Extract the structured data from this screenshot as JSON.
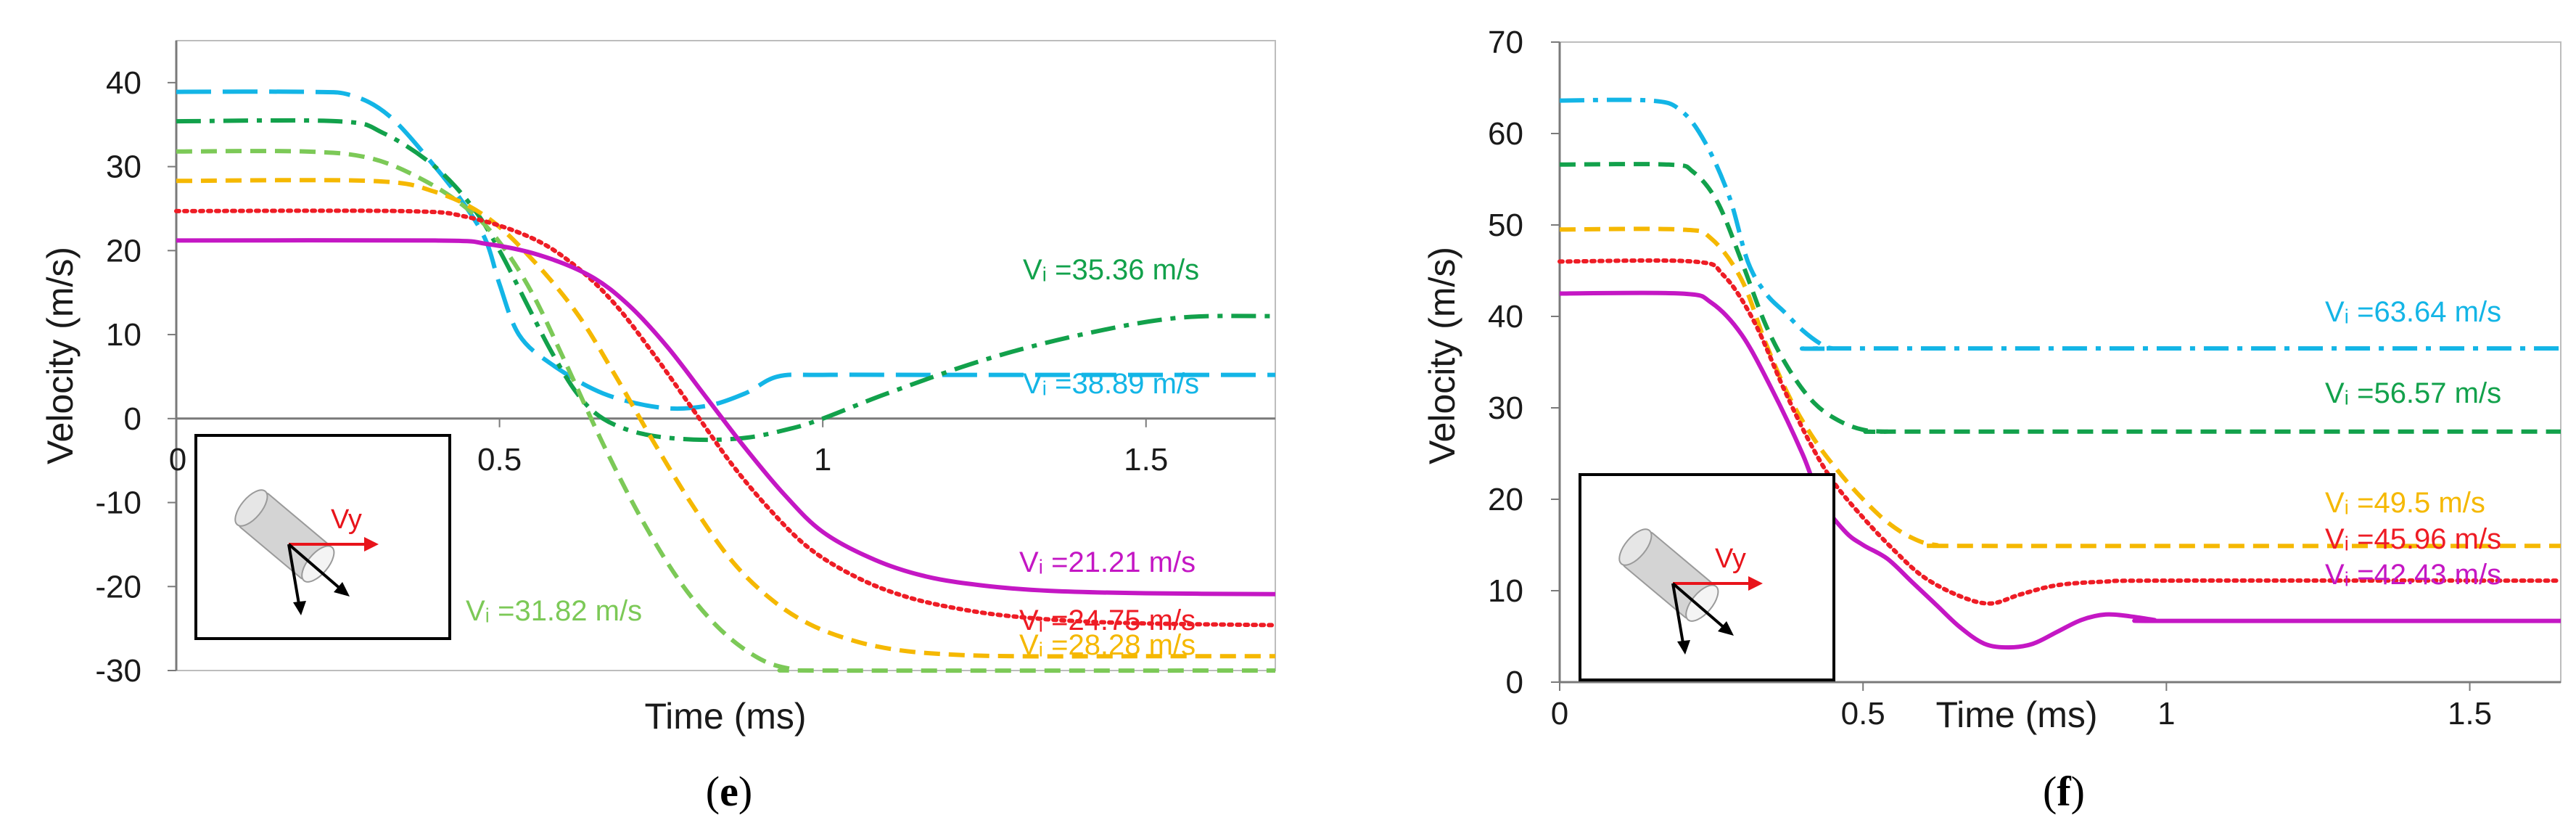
{
  "colors": {
    "cyan": "#13b5e6",
    "green": "#12a14b",
    "lightgreen": "#7cc957",
    "orange": "#f5b800",
    "red": "#ee1c25",
    "magenta": "#c417c4"
  },
  "chart_data": [
    {
      "type": "line",
      "caption": "(e)",
      "caption_letter": "e",
      "xlabel": "Time (ms)",
      "ylabel": "Velocity (m/s)",
      "xlim": [
        0,
        1.7
      ],
      "ylim": [
        -30,
        45
      ],
      "xticks": [
        0,
        0.5,
        1,
        1.5
      ],
      "xtick_labels": [
        "0",
        "0.5",
        "1",
        "1.5"
      ],
      "yticks": [
        -30,
        -20,
        -10,
        0,
        10,
        20,
        30,
        40
      ],
      "ytick_labels": [
        "-30",
        "-20",
        "-10",
        "0",
        "10",
        "20",
        "30",
        "40"
      ],
      "grid": false,
      "inset_label": "Vy",
      "series": [
        {
          "label": "Vᵢ =38.89 m/s",
          "color_key": "cyan",
          "dash": "long-dash",
          "x": [
            0,
            0.2,
            0.27,
            0.33,
            0.4,
            0.45,
            0.48,
            0.5,
            0.53,
            0.58,
            0.66,
            0.75,
            0.82,
            0.88,
            0.93,
            1.0,
            1.2,
            1.7
          ],
          "y": [
            38.9,
            38.9,
            38.5,
            36,
            30,
            25,
            21,
            16,
            10,
            6.5,
            3,
            1.3,
            1.5,
            3,
            5,
            5.2,
            5.2,
            5.2
          ]
        },
        {
          "label": "Vᵢ =35.36 m/s",
          "color_key": "green",
          "dash": "dash-dot",
          "x": [
            0,
            0.25,
            0.32,
            0.4,
            0.46,
            0.5,
            0.54,
            0.58,
            0.62,
            0.66,
            0.72,
            0.8,
            0.88,
            0.95,
            1.0,
            1.1,
            1.25,
            1.4,
            1.55,
            1.7
          ],
          "y": [
            35.4,
            35.4,
            34,
            30,
            25,
            20,
            14,
            8,
            3,
            0,
            -1.8,
            -2.5,
            -2.3,
            -1.2,
            0,
            3,
            7,
            10,
            12,
            12.2
          ]
        },
        {
          "label": "Vᵢ =31.82 m/s",
          "color_key": "lightgreen",
          "dash": "dash",
          "x": [
            0,
            0.2,
            0.3,
            0.38,
            0.45,
            0.5,
            0.55,
            0.6,
            0.66,
            0.72,
            0.78,
            0.84,
            0.9,
            0.95,
            1.0,
            1.7
          ],
          "y": [
            31.8,
            31.8,
            31,
            28.5,
            25,
            21,
            15,
            7,
            -3,
            -12,
            -19.5,
            -25,
            -28.5,
            -29.8,
            -30,
            -30
          ]
        },
        {
          "label": "Vᵢ =28.28 m/s",
          "color_key": "orange",
          "dash": "dash",
          "x": [
            0,
            0.3,
            0.4,
            0.48,
            0.55,
            0.62,
            0.68,
            0.74,
            0.8,
            0.86,
            0.92,
            0.98,
            1.05,
            1.12,
            1.2,
            1.3,
            1.5,
            1.7
          ],
          "y": [
            28.3,
            28.3,
            27,
            24,
            19,
            12.5,
            5,
            -3,
            -10.5,
            -17,
            -21.5,
            -24.5,
            -26.5,
            -27.6,
            -28.1,
            -28.3,
            -28.3,
            -28.3
          ]
        },
        {
          "label": "Vᵢ =24.75 m/s",
          "color_key": "red",
          "dash": "dot",
          "x": [
            0,
            0.35,
            0.45,
            0.55,
            0.62,
            0.68,
            0.74,
            0.8,
            0.86,
            0.92,
            0.98,
            1.05,
            1.12,
            1.2,
            1.3,
            1.45,
            1.7
          ],
          "y": [
            24.7,
            24.7,
            24,
            21.5,
            18,
            13.5,
            7.5,
            1,
            -5.5,
            -11,
            -15.5,
            -18.8,
            -21,
            -22.5,
            -23.6,
            -24.3,
            -24.6
          ]
        },
        {
          "label": "Vᵢ =21.21 m/s",
          "color_key": "magenta",
          "dash": "solid",
          "x": [
            0,
            0.4,
            0.48,
            0.56,
            0.64,
            0.7,
            0.76,
            0.82,
            0.88,
            0.94,
            1.0,
            1.08,
            1.16,
            1.25,
            1.35,
            1.5,
            1.7
          ],
          "y": [
            21.2,
            21.2,
            20.8,
            19.5,
            17,
            13.5,
            8.5,
            2.5,
            -3.5,
            -9,
            -13.5,
            -16.8,
            -18.8,
            -19.9,
            -20.5,
            -20.8,
            -20.9
          ]
        }
      ]
    },
    {
      "type": "line",
      "caption": "(f)",
      "caption_letter": "f",
      "xlabel": "Time (ms)",
      "ylabel": "Velocity (m/s)",
      "xlim": [
        0,
        1.65
      ],
      "ylim": [
        0,
        70
      ],
      "xticks": [
        0,
        0.5,
        1,
        1.5
      ],
      "xtick_labels": [
        "0",
        "0.5",
        "1",
        "1.5"
      ],
      "yticks": [
        0,
        10,
        20,
        30,
        40,
        50,
        60,
        70
      ],
      "ytick_labels": [
        "0",
        "10",
        "20",
        "30",
        "40",
        "50",
        "60",
        "70"
      ],
      "grid": false,
      "inset_label": "Vy",
      "series": [
        {
          "label": "Vᵢ =63.64 m/s",
          "color_key": "cyan",
          "dash": "dash-dot",
          "x": [
            0,
            0.15,
            0.2,
            0.24,
            0.28,
            0.31,
            0.34,
            0.37,
            0.4,
            0.43,
            0.45,
            0.5,
            1.65
          ],
          "y": [
            63.6,
            63.6,
            62.5,
            59,
            53,
            46,
            42.5,
            40.5,
            38.5,
            37,
            36.5,
            36.5,
            36.5
          ]
        },
        {
          "label": "Vᵢ =56.57 m/s",
          "color_key": "green",
          "dash": "dash",
          "x": [
            0,
            0.18,
            0.22,
            0.26,
            0.3,
            0.34,
            0.38,
            0.42,
            0.46,
            0.5,
            0.54,
            0.6,
            1.65
          ],
          "y": [
            56.6,
            56.6,
            55.8,
            52.5,
            46,
            39,
            34,
            30.5,
            28.6,
            27.6,
            27.4,
            27.4,
            27.4
          ]
        },
        {
          "label": "Vᵢ =49.5 m/s",
          "color_key": "orange",
          "dash": "dash",
          "x": [
            0,
            0.2,
            0.25,
            0.3,
            0.34,
            0.38,
            0.42,
            0.46,
            0.5,
            0.54,
            0.58,
            0.62,
            0.7,
            1.65
          ],
          "y": [
            49.5,
            49.5,
            48.5,
            44,
            37,
            31,
            26.5,
            23,
            20,
            17.5,
            15.8,
            15,
            14.9,
            14.9
          ]
        },
        {
          "label": "Vᵢ =45.96 m/s",
          "color_key": "red",
          "dash": "dot",
          "x": [
            0,
            0.22,
            0.27,
            0.32,
            0.37,
            0.41,
            0.45,
            0.5,
            0.55,
            0.6,
            0.66,
            0.71,
            0.76,
            0.82,
            0.9,
            1.0,
            1.65
          ],
          "y": [
            46,
            46,
            44.5,
            39.5,
            32,
            26.5,
            22,
            18,
            14.5,
            11.5,
            9.4,
            8.6,
            9.6,
            10.6,
            11,
            11.1,
            11.1
          ]
        },
        {
          "label": "Vᵢ =42.43 m/s",
          "color_key": "magenta",
          "dash": "solid",
          "x": [
            0,
            0.2,
            0.25,
            0.3,
            0.35,
            0.4,
            0.43,
            0.47,
            0.5,
            0.54,
            0.58,
            0.62,
            0.66,
            0.7,
            0.74,
            0.78,
            0.82,
            0.86,
            0.9,
            0.94,
            0.98,
            1.0,
            1.65
          ],
          "y": [
            42.5,
            42.5,
            41.5,
            38,
            32,
            25,
            20,
            16.5,
            15,
            13.5,
            11,
            8.5,
            6,
            4.2,
            3.8,
            4.2,
            5.5,
            6.8,
            7.4,
            7.2,
            6.8,
            6.7,
            6.7
          ]
        }
      ]
    }
  ]
}
